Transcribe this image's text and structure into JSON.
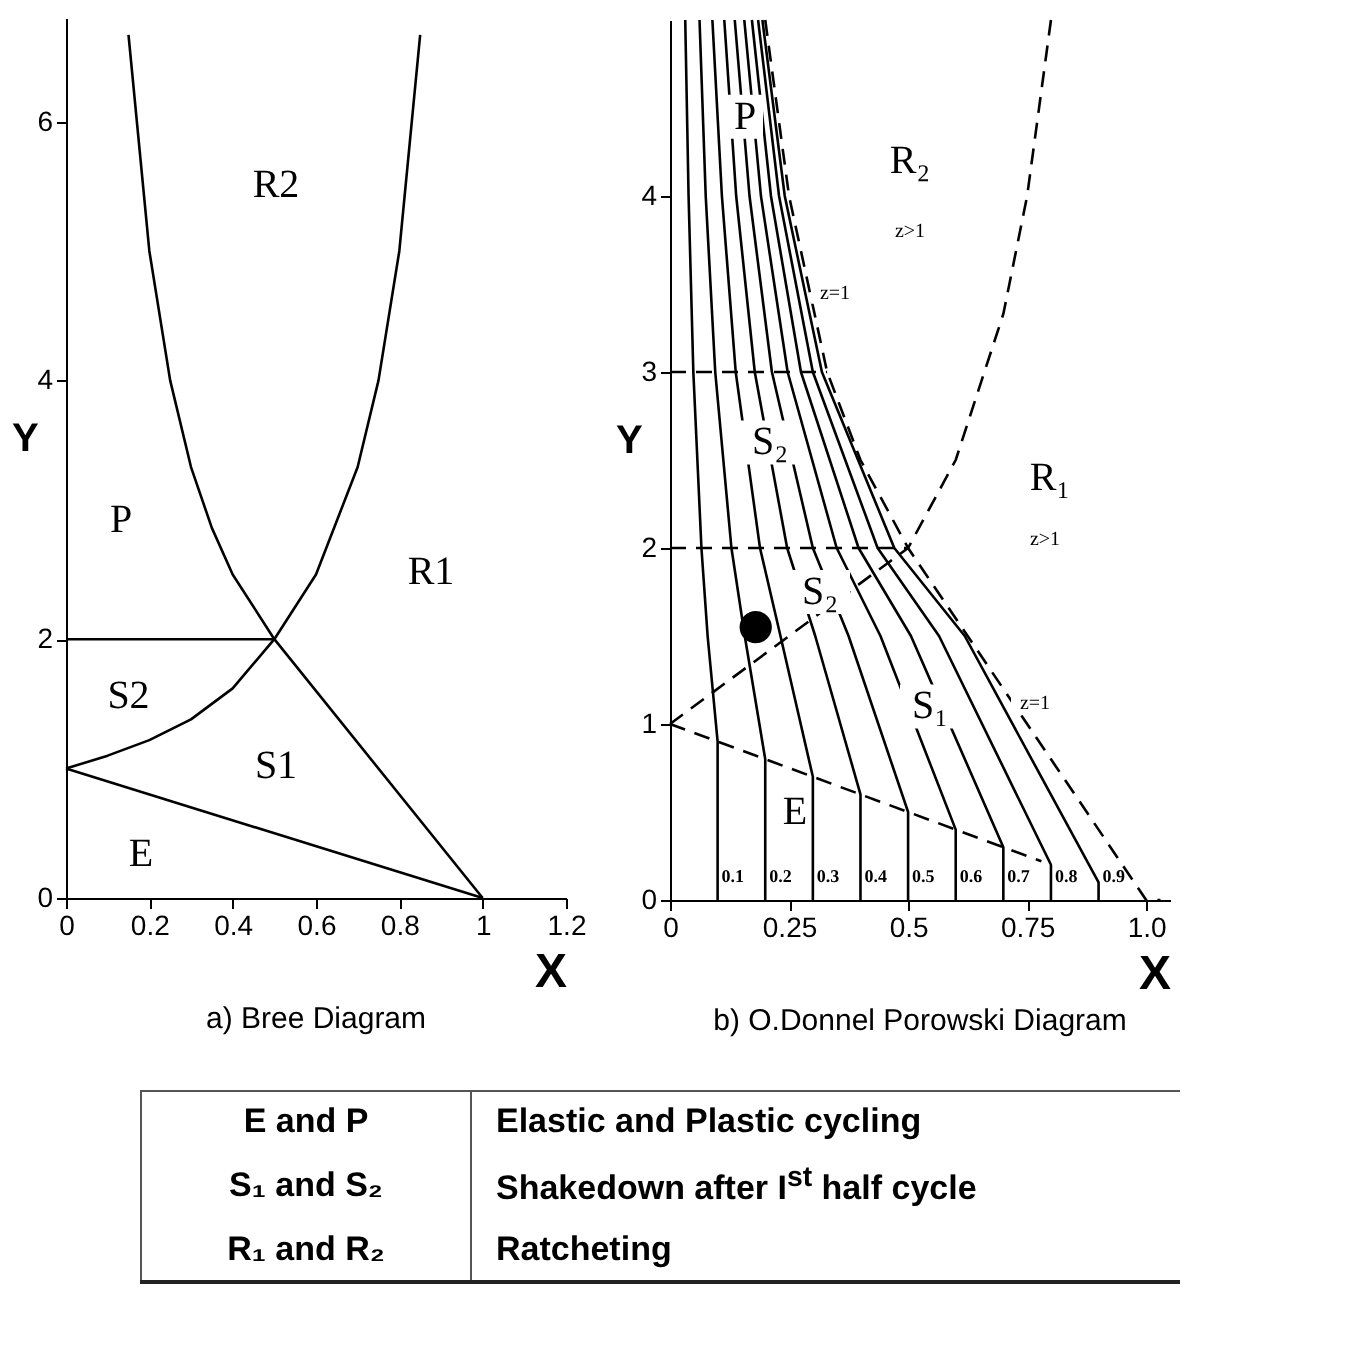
{
  "chart_data": [
    {
      "type": "line",
      "title": "a)  Bree Diagram",
      "xlabel": "X",
      "ylabel": "Y",
      "xlim": [
        0,
        1.2
      ],
      "xticks": [
        0,
        0.2,
        0.4,
        0.6,
        0.8,
        1,
        1.2
      ],
      "ylim": [
        0,
        6.8
      ],
      "yticks": [
        0,
        2,
        4,
        6
      ],
      "series": [
        {
          "color": "#000000",
          "x": [
            0,
            1
          ],
          "values": [
            1,
            0
          ]
        },
        {
          "color": "#000000",
          "x": [
            0,
            0.5
          ],
          "values": [
            2,
            2
          ]
        },
        {
          "color": "#000000",
          "x": [
            0.15,
            0.2,
            0.25,
            0.3,
            0.35,
            0.4,
            0.5,
            1
          ],
          "values": [
            6.67,
            5,
            4,
            3.33,
            2.86,
            2.5,
            2,
            0
          ]
        },
        {
          "color": "#000000",
          "x": [
            0,
            0.1,
            0.2,
            0.3,
            0.4,
            0.5,
            0.6,
            0.7,
            0.75,
            0.8,
            0.85
          ],
          "values": [
            1,
            1.1,
            1.22,
            1.38,
            1.62,
            2,
            2.5,
            3.33,
            4,
            5,
            6.67
          ]
        }
      ],
      "annotations": [
        "R2",
        "P",
        "R1",
        "S2",
        "S1",
        "E"
      ]
    },
    {
      "type": "line",
      "title": "b)  O.Donnel Porowski Diagram",
      "xlabel": "X",
      "ylabel": "Y",
      "xlim": [
        0,
        1.05
      ],
      "xticks": [
        0,
        0.25,
        0.5,
        0.75,
        {
          "value": 1,
          "label": "1.0"
        }
      ],
      "ylim": [
        0,
        5
      ],
      "yticks": [
        0,
        1,
        2,
        3,
        4
      ],
      "series": [
        {
          "name": "0.1",
          "color": "#000000",
          "x": [
            0.1,
            0.1,
            0.079,
            0.066,
            0.049,
            0.039,
            0.032
          ],
          "values": [
            0,
            0.9,
            1.5,
            2,
            3,
            4,
            5
          ]
        },
        {
          "name": "0.2",
          "color": "#000000",
          "x": [
            0.2,
            0.2,
            0.157,
            0.129,
            0.095,
            0.075,
            0.062
          ],
          "values": [
            0,
            0.8,
            1.5,
            2,
            3,
            4,
            5
          ]
        },
        {
          "name": "0.3",
          "color": "#000000",
          "x": [
            0.3,
            0.3,
            0.232,
            0.189,
            0.138,
            0.109,
            0.089
          ],
          "values": [
            0,
            0.7,
            1.5,
            2,
            3,
            4,
            5
          ]
        },
        {
          "name": "0.4",
          "color": "#000000",
          "x": [
            0.4,
            0.4,
            0.305,
            0.246,
            0.178,
            0.139,
            0.114
          ],
          "values": [
            0,
            0.6,
            1.5,
            2,
            3,
            4,
            5
          ]
        },
        {
          "name": "0.5",
          "color": "#000000",
          "x": [
            0.5,
            0.5,
            0.375,
            0.3,
            0.214,
            0.167,
            0.136
          ],
          "values": [
            0,
            0.5,
            1.5,
            2,
            3,
            4,
            5
          ]
        },
        {
          "name": "0.6",
          "color": "#000000",
          "x": [
            0.6,
            0.6,
            0.442,
            0.35,
            0.247,
            0.191,
            0.156
          ],
          "values": [
            0,
            0.4,
            1.5,
            2,
            3,
            4,
            5
          ]
        },
        {
          "name": "0.7",
          "color": "#000000",
          "x": [
            0.7,
            0.7,
            0.506,
            0.396,
            0.275,
            0.212,
            0.172
          ],
          "values": [
            0,
            0.3,
            1.5,
            2,
            3,
            4,
            5
          ]
        },
        {
          "name": "0.8",
          "color": "#000000",
          "x": [
            0.8,
            0.8,
            0.565,
            0.436,
            0.3,
            0.229,
            0.185
          ],
          "values": [
            0,
            0.2,
            1.5,
            2,
            3,
            4,
            5
          ]
        },
        {
          "name": "0.9",
          "color": "#000000",
          "x": [
            0.9,
            0.9,
            0.619,
            0.471,
            0.319,
            0.241,
            0.194
          ],
          "values": [
            0,
            0.1,
            1.5,
            2,
            3,
            4,
            5
          ]
        },
        {
          "color": "#000000",
          "line_style": "dashed",
          "x": [
            0,
            0.5,
            0.78
          ],
          "values": [
            1,
            0.5,
            0.22
          ]
        },
        {
          "color": "#000000",
          "line_style": "dashed",
          "x": [
            0,
            0.5,
            0.6,
            0.7,
            0.75,
            0.8
          ],
          "values": [
            1,
            2,
            2.5,
            3.33,
            4,
            5
          ]
        },
        {
          "color": "#000000",
          "line_style": "dashed",
          "x": [
            0,
            0.5
          ],
          "values": [
            2,
            2
          ]
        },
        {
          "color": "#000000",
          "line_style": "dashed",
          "x": [
            0,
            0.33
          ],
          "values": [
            3,
            3
          ]
        },
        {
          "color": "#000000",
          "line_style": "dashed",
          "x": [
            0.2,
            0.25,
            0.33,
            0.4,
            0.5,
            0.75,
            1,
            1.03
          ],
          "values": [
            5,
            4,
            3,
            2.5,
            2,
            1,
            0,
            0
          ]
        },
        {
          "type": "scatter",
          "color": "#000000",
          "marker": "circle",
          "x": [
            0.18
          ],
          "values": [
            1.55
          ]
        }
      ],
      "annotations": [
        "P",
        "R₂",
        "z>1",
        "z=1",
        "S₂",
        "R₁",
        "z>1",
        "S₂",
        "S₁",
        "z=1",
        "E"
      ]
    },
    {
      "type": "other",
      "annotations": [
        "E and P",
        "Elastic and Plastic cycling",
        "S₁ and S₂",
        "Shakedown after I$^{st}$ half cycle",
        "R₁ and R₂",
        "Ratcheting"
      ]
    }
  ]
}
